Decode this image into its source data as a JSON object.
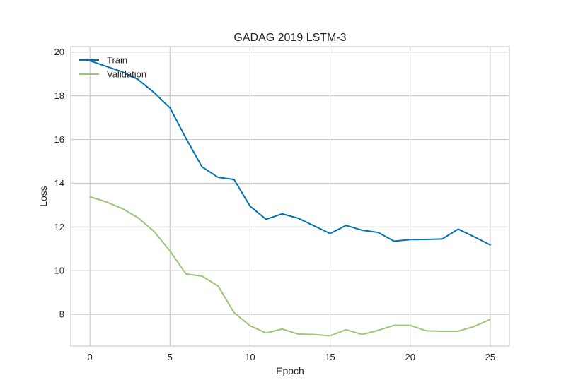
{
  "chart_data": {
    "type": "line",
    "title": "GADAG 2019 LSTM-3",
    "xlabel": "Epoch",
    "ylabel": "Loss",
    "xlim": [
      -1.2,
      26.2
    ],
    "ylim": [
      6.55,
      20.25
    ],
    "xticks": [
      0,
      5,
      10,
      15,
      20,
      25
    ],
    "yticks": [
      8,
      10,
      12,
      14,
      16,
      18,
      20
    ],
    "grid": true,
    "legend_position": "top-left",
    "x": [
      0,
      1,
      2,
      3,
      4,
      5,
      6,
      7,
      8,
      9,
      10,
      11,
      12,
      13,
      14,
      15,
      16,
      17,
      18,
      19,
      20,
      21,
      22,
      23,
      24,
      25
    ],
    "series": [
      {
        "name": "Train",
        "color": "#0072b2",
        "values": [
          19.6,
          19.35,
          19.1,
          18.75,
          18.15,
          17.45,
          16.05,
          14.75,
          14.27,
          14.17,
          12.95,
          12.35,
          12.6,
          12.4,
          12.05,
          11.7,
          12.07,
          11.85,
          11.75,
          11.35,
          11.42,
          11.43,
          11.45,
          11.9,
          11.55,
          11.18
        ]
      },
      {
        "name": "Validation",
        "color": "#9bc577",
        "values": [
          13.38,
          13.15,
          12.85,
          12.42,
          11.8,
          10.9,
          9.85,
          9.75,
          9.3,
          8.08,
          7.48,
          7.15,
          7.33,
          7.1,
          7.08,
          7.02,
          7.3,
          7.08,
          7.27,
          7.5,
          7.5,
          7.25,
          7.23,
          7.23,
          7.45,
          7.77
        ]
      }
    ]
  }
}
